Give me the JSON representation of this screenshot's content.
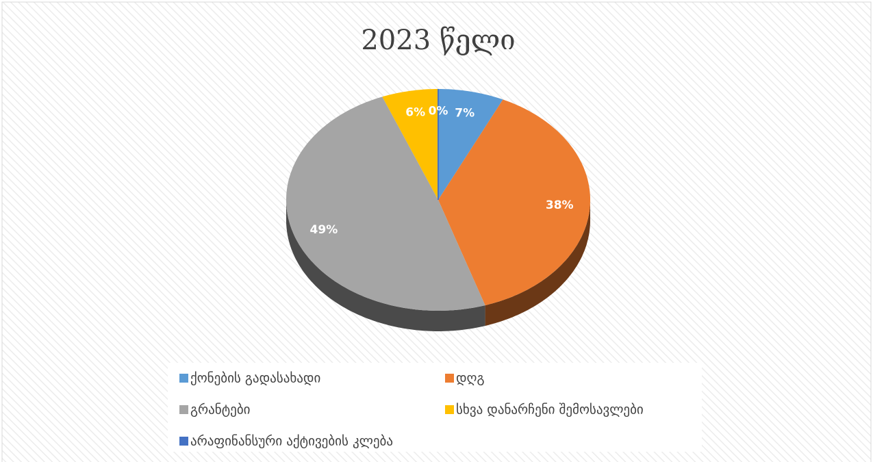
{
  "chart_data": {
    "type": "pie",
    "title": "2023  წელი",
    "categories": [
      "ქონების გადასახადი",
      "დღგ",
      "გრანტები",
      "სხვა დანარჩენი  შემოსავლები",
      "არაფინანსური აქტივების კლება"
    ],
    "values": [
      7,
      38,
      49,
      6,
      0
    ],
    "value_labels": [
      "7%",
      "38%",
      "49%",
      "6%",
      "0%"
    ],
    "colors": [
      "#5b9bd5",
      "#ed7d31",
      "#a5a5a5",
      "#ffc000",
      "#4472c4"
    ]
  }
}
